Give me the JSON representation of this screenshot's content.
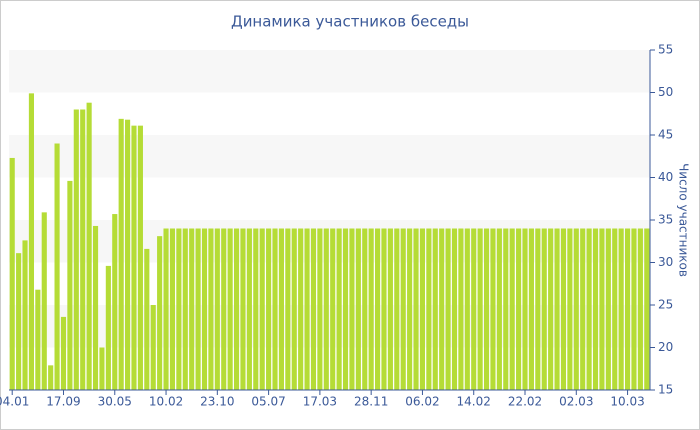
{
  "chart_data": {
    "type": "bar",
    "title": "Динамика участников беседы",
    "y_axis_label": "Число участников",
    "categories": [
      "04.01",
      null,
      null,
      null,
      null,
      null,
      null,
      null,
      "17.09",
      null,
      null,
      null,
      null,
      null,
      null,
      null,
      "30.05",
      null,
      null,
      null,
      null,
      null,
      null,
      null,
      "10.02",
      null,
      null,
      null,
      null,
      null,
      null,
      null,
      "23.10",
      null,
      null,
      null,
      null,
      null,
      null,
      null,
      "05.07",
      null,
      null,
      null,
      null,
      null,
      null,
      null,
      "17.03",
      null,
      null,
      null,
      null,
      null,
      null,
      null,
      "28.11",
      null,
      null,
      null,
      null,
      null,
      null,
      null,
      "06.02",
      null,
      null,
      null,
      null,
      null,
      null,
      null,
      "14.02",
      null,
      null,
      null,
      null,
      null,
      null,
      null,
      "22.02",
      null,
      null,
      null,
      null,
      null,
      null,
      null,
      "02.03",
      null,
      null,
      null,
      null,
      null,
      null,
      null,
      "10.03",
      null,
      null,
      null
    ],
    "values": [
      42.3,
      31.1,
      32.6,
      49.9,
      26.8,
      35.9,
      17.9,
      44,
      23.6,
      39.6,
      48,
      48,
      48.8,
      34.3,
      20,
      29.6,
      35.7,
      46.9,
      46.8,
      46.1,
      46.1,
      31.6,
      25,
      33.1,
      34,
      34,
      34,
      34,
      34,
      34,
      34,
      34,
      34,
      34,
      34,
      34,
      34,
      34,
      34,
      34,
      34,
      34,
      34,
      34,
      34,
      34,
      34,
      34,
      34,
      34,
      34,
      34,
      34,
      34,
      34,
      34,
      34,
      34,
      34,
      34,
      34,
      34,
      34,
      34,
      34,
      34,
      34,
      34,
      34,
      34,
      34,
      34,
      34,
      34,
      34,
      34,
      34,
      34,
      34,
      34,
      34,
      34,
      34,
      34,
      34,
      34,
      34,
      34,
      34,
      34,
      34,
      34,
      34,
      34,
      34,
      34,
      34,
      34,
      34,
      34
    ],
    "color": "#b5dc36",
    "ylim": [
      15,
      55
    ],
    "yticks": [
      15,
      20,
      25,
      30,
      35,
      40,
      45,
      50,
      55
    ],
    "grid_bands": true
  }
}
